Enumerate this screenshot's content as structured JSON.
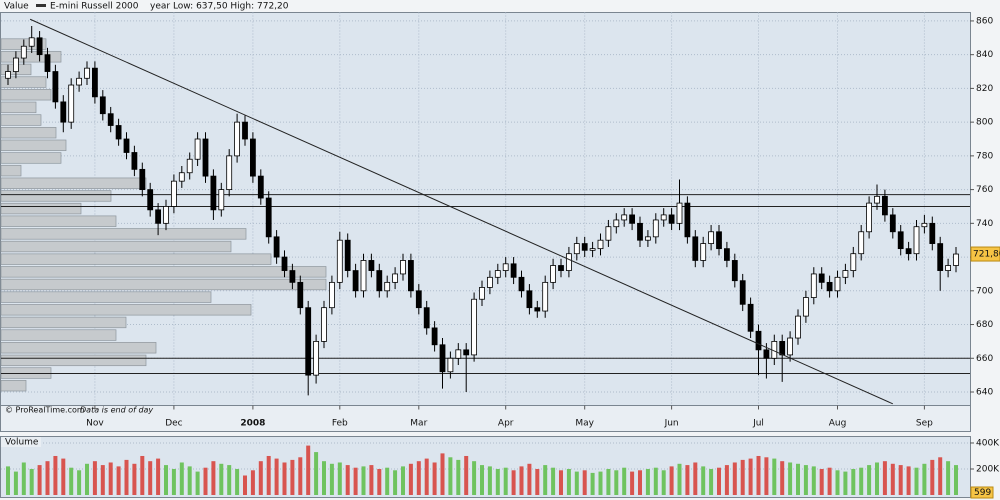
{
  "chart_data": [
    {
      "type": "candlestick",
      "header_label": "Value",
      "series_name": "E-mini Russell 2000",
      "range_text": "year Low: 637,50  High: 772,20",
      "footer_source": "© ProRealTime.com",
      "footer_note": "Data is end of day",
      "last_price_label": "721,80",
      "up_color": "#ffffff",
      "down_color": "#000000",
      "line_color": "#222222",
      "profile_color": "#c6cacd",
      "grid": true,
      "categories": [
        null,
        null,
        null,
        null,
        null,
        null,
        null,
        null,
        null,
        null,
        null,
        "Nov",
        null,
        null,
        null,
        null,
        null,
        null,
        null,
        null,
        null,
        "Dec",
        null,
        null,
        null,
        null,
        null,
        null,
        null,
        null,
        null,
        "2008",
        null,
        null,
        null,
        null,
        null,
        null,
        null,
        null,
        null,
        null,
        "Feb",
        null,
        null,
        null,
        null,
        null,
        null,
        null,
        null,
        null,
        "Mar",
        null,
        null,
        null,
        null,
        null,
        null,
        null,
        null,
        null,
        null,
        "Apr",
        null,
        null,
        null,
        null,
        null,
        null,
        null,
        null,
        null,
        "May",
        null,
        null,
        null,
        null,
        null,
        null,
        null,
        null,
        null,
        null,
        "Jun",
        null,
        null,
        null,
        null,
        null,
        null,
        null,
        null,
        null,
        null,
        "Jul",
        null,
        null,
        null,
        null,
        null,
        null,
        null,
        null,
        null,
        "Aug",
        null,
        null,
        null,
        null,
        null,
        null,
        null,
        null,
        null,
        null,
        "Sep",
        null,
        null,
        null,
        null
      ],
      "open": [
        826,
        830,
        838,
        845,
        850,
        840,
        830,
        812,
        800,
        822,
        826,
        832,
        815,
        805,
        798,
        790,
        782,
        772,
        760,
        748,
        740,
        750,
        765,
        770,
        778,
        790,
        768,
        748,
        760,
        780,
        800,
        790,
        768,
        755,
        732,
        720,
        712,
        705,
        690,
        650,
        670,
        690,
        705,
        730,
        712,
        700,
        718,
        712,
        700,
        705,
        710,
        718,
        700,
        690,
        678,
        668,
        652,
        660,
        665,
        662,
        695,
        702,
        708,
        712,
        716,
        708,
        700,
        690,
        688,
        705,
        715,
        712,
        722,
        728,
        724,
        725,
        730,
        738,
        742,
        745,
        740,
        730,
        732,
        742,
        745,
        740,
        752,
        732,
        718,
        728,
        735,
        725,
        718,
        706,
        692,
        676,
        665,
        660,
        670,
        662,
        672,
        685,
        696,
        710,
        705,
        700,
        708,
        712,
        722,
        735,
        752,
        756,
        745,
        735,
        725,
        722,
        738,
        740,
        728,
        712,
        715
      ],
      "high": [
        834,
        842,
        849,
        857,
        854,
        844,
        834,
        816,
        826,
        830,
        836,
        836,
        819,
        809,
        802,
        794,
        786,
        776,
        764,
        752,
        754,
        769,
        774,
        782,
        794,
        794,
        772,
        764,
        784,
        805,
        804,
        794,
        772,
        759,
        736,
        724,
        716,
        709,
        694,
        674,
        694,
        709,
        735,
        734,
        716,
        722,
        722,
        716,
        709,
        714,
        722,
        722,
        704,
        694,
        682,
        672,
        664,
        669,
        669,
        699,
        706,
        712,
        716,
        720,
        720,
        712,
        704,
        694,
        709,
        719,
        719,
        726,
        732,
        732,
        729,
        734,
        742,
        746,
        749,
        749,
        744,
        736,
        746,
        749,
        749,
        766,
        756,
        736,
        732,
        739,
        739,
        729,
        722,
        710,
        696,
        680,
        669,
        674,
        674,
        676,
        689,
        700,
        714,
        714,
        709,
        712,
        716,
        726,
        739,
        756,
        763,
        760,
        749,
        739,
        729,
        742,
        745,
        744,
        732,
        719,
        726
      ],
      "low": [
        822,
        826,
        834,
        841,
        836,
        826,
        808,
        794,
        796,
        818,
        822,
        811,
        801,
        794,
        786,
        778,
        768,
        756,
        744,
        733,
        736,
        746,
        761,
        766,
        774,
        764,
        742,
        744,
        756,
        776,
        786,
        764,
        751,
        728,
        716,
        708,
        701,
        686,
        638,
        645,
        666,
        686,
        701,
        708,
        696,
        696,
        708,
        696,
        696,
        701,
        706,
        696,
        686,
        674,
        664,
        642,
        648,
        656,
        640,
        658,
        691,
        698,
        704,
        708,
        704,
        696,
        686,
        684,
        684,
        701,
        708,
        708,
        718,
        720,
        720,
        721,
        726,
        734,
        738,
        736,
        726,
        726,
        728,
        738,
        736,
        736,
        728,
        714,
        714,
        724,
        721,
        714,
        702,
        688,
        672,
        650,
        648,
        656,
        646,
        658,
        668,
        681,
        692,
        701,
        696,
        696,
        704,
        708,
        718,
        731,
        748,
        741,
        731,
        721,
        718,
        718,
        734,
        724,
        700,
        708,
        711
      ],
      "close": [
        830,
        838,
        845,
        850,
        840,
        830,
        812,
        800,
        822,
        826,
        832,
        815,
        805,
        798,
        790,
        782,
        772,
        760,
        748,
        740,
        750,
        765,
        770,
        778,
        790,
        768,
        748,
        760,
        780,
        800,
        790,
        768,
        755,
        732,
        720,
        712,
        705,
        690,
        650,
        670,
        690,
        705,
        730,
        712,
        700,
        718,
        712,
        700,
        705,
        710,
        718,
        700,
        690,
        678,
        668,
        652,
        660,
        665,
        662,
        695,
        702,
        708,
        712,
        716,
        708,
        700,
        690,
        688,
        705,
        715,
        712,
        722,
        728,
        724,
        725,
        730,
        738,
        742,
        745,
        740,
        730,
        732,
        742,
        745,
        740,
        752,
        732,
        718,
        728,
        735,
        725,
        718,
        706,
        692,
        676,
        665,
        660,
        670,
        662,
        672,
        685,
        696,
        710,
        705,
        700,
        708,
        712,
        722,
        735,
        752,
        756,
        745,
        735,
        725,
        722,
        738,
        740,
        728,
        712,
        715,
        721.8
      ],
      "profile": {
        "bins": [
          640,
          647.5,
          655,
          662.5,
          670,
          677.5,
          685,
          692.5,
          700,
          707.5,
          715,
          722.5,
          730,
          737.5,
          745,
          752.5,
          760,
          767.5,
          775,
          782.5,
          790,
          797.5,
          805,
          812.5,
          820,
          827.5,
          835,
          842.5,
          850
        ],
        "values": [
          25,
          50,
          145,
          155,
          115,
          125,
          250,
          210,
          325,
          325,
          270,
          230,
          245,
          115,
          80,
          110,
          145,
          20,
          60,
          65,
          55,
          40,
          35,
          50,
          45,
          30,
          60,
          45
        ]
      },
      "levels": [
        757,
        750,
        660,
        651
      ],
      "trendline": {
        "x": [
          2.8,
          112
        ],
        "y": [
          861,
          633
        ]
      },
      "ylim": [
        632,
        865
      ],
      "yticks": [
        640,
        660,
        680,
        700,
        720,
        740,
        760,
        780,
        800,
        820,
        840,
        860
      ]
    },
    {
      "type": "bar",
      "title": "Volume",
      "last_label": "599",
      "up_color": "#6fc35f",
      "down_color": "#d8544f",
      "values": [
        220000,
        180000,
        250000,
        200000,
        230000,
        260000,
        300000,
        280000,
        210000,
        190000,
        240000,
        260000,
        230000,
        250000,
        220000,
        270000,
        240000,
        300000,
        260000,
        280000,
        230000,
        200000,
        250000,
        220000,
        180000,
        210000,
        260000,
        240000,
        230000,
        200000,
        150000,
        190000,
        260000,
        300000,
        280000,
        250000,
        270000,
        290000,
        380000,
        330000,
        260000,
        240000,
        250000,
        230000,
        210000,
        220000,
        230000,
        200000,
        210000,
        190000,
        220000,
        240000,
        260000,
        280000,
        250000,
        320000,
        290000,
        270000,
        300000,
        260000,
        230000,
        220000,
        200000,
        210000,
        190000,
        220000,
        240000,
        200000,
        230000,
        210000,
        190000,
        200000,
        180000,
        190000,
        170000,
        180000,
        200000,
        190000,
        210000,
        180000,
        190000,
        200000,
        210000,
        190000,
        220000,
        240000,
        230000,
        250000,
        220000,
        200000,
        210000,
        230000,
        250000,
        270000,
        280000,
        300000,
        290000,
        280000,
        260000,
        250000,
        240000,
        230000,
        220000,
        200000,
        210000,
        190000,
        180000,
        200000,
        210000,
        230000,
        250000,
        260000,
        240000,
        230000,
        220000,
        210000,
        240000,
        270000,
        290000,
        260000,
        230000
      ],
      "ylim": [
        0,
        446000
      ],
      "yticks": [
        {
          "value": 200000,
          "label": "200K"
        },
        {
          "value": 400000,
          "label": "400K"
        }
      ]
    }
  ]
}
